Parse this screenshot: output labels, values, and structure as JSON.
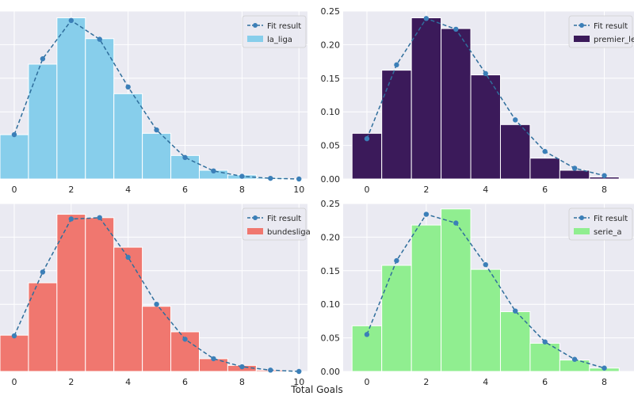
{
  "xlabel": "Total Goals",
  "colors": {
    "panel_bg": "#eaeaf2",
    "grid": "#ffffff",
    "fit_line": "#2f6e9c",
    "fit_marker": "#3b7fb8"
  },
  "chart_data": [
    {
      "type": "bar",
      "league": "la_liga",
      "legend": [
        "Fit result",
        "la_liga"
      ],
      "color": "#87ceeb",
      "xlim": [
        -0.5,
        10.3
      ],
      "ylim": [
        0,
        0.25
      ],
      "xticks": [
        "0",
        "2",
        "4",
        "6",
        "8",
        "10"
      ],
      "yticks": [],
      "bins": [
        0,
        1,
        2,
        3,
        4,
        5,
        6,
        7,
        8,
        9
      ],
      "values": [
        0.066,
        0.171,
        0.24,
        0.209,
        0.127,
        0.068,
        0.035,
        0.013,
        0.006,
        0.002
      ],
      "fit_x": [
        0,
        1,
        2,
        3,
        4,
        5,
        6,
        7,
        8,
        9,
        10
      ],
      "fit_y": [
        0.066,
        0.179,
        0.236,
        0.208,
        0.137,
        0.073,
        0.032,
        0.012,
        0.004,
        0.001,
        0.0
      ]
    },
    {
      "type": "bar",
      "league": "premier",
      "legend": [
        "Fit result",
        "premier_league"
      ],
      "color": "#3b1a5a",
      "xlim": [
        -0.8,
        9.0
      ],
      "ylim": [
        0,
        0.25
      ],
      "xticks": [
        "0",
        "2",
        "4",
        "6",
        "8"
      ],
      "yticks": [
        "0.00",
        "0.05",
        "0.10",
        "0.15",
        "0.20",
        "0.25"
      ],
      "bins": [
        0,
        1,
        2,
        3,
        4,
        5,
        6,
        7,
        8
      ],
      "values": [
        0.068,
        0.162,
        0.24,
        0.224,
        0.155,
        0.081,
        0.031,
        0.013,
        0.003
      ],
      "fit_x": [
        0,
        1,
        2,
        3,
        4,
        5,
        6,
        7,
        8
      ],
      "fit_y": [
        0.06,
        0.17,
        0.239,
        0.223,
        0.157,
        0.088,
        0.041,
        0.016,
        0.005
      ]
    },
    {
      "type": "bar",
      "league": "bundesliga",
      "legend": [
        "Fit result",
        "bundesliga"
      ],
      "color": "#f0776f",
      "xlim": [
        -0.5,
        10.3
      ],
      "ylim": [
        0,
        0.25
      ],
      "xticks": [
        "0",
        "2",
        "4",
        "6",
        "8",
        "10"
      ],
      "yticks": [],
      "bins": [
        0,
        1,
        2,
        3,
        4,
        5,
        6,
        7,
        8,
        9
      ],
      "values": [
        0.054,
        0.132,
        0.234,
        0.229,
        0.185,
        0.097,
        0.059,
        0.019,
        0.009,
        0.002
      ],
      "fit_x": [
        0,
        1,
        2,
        3,
        4,
        5,
        6,
        7,
        8,
        9,
        10
      ],
      "fit_y": [
        0.053,
        0.148,
        0.227,
        0.229,
        0.17,
        0.1,
        0.048,
        0.019,
        0.007,
        0.002,
        0.0
      ]
    },
    {
      "type": "bar",
      "league": "serie_a",
      "legend": [
        "Fit result",
        "serie_a"
      ],
      "color": "#90ee90",
      "xlim": [
        -0.8,
        9.0
      ],
      "ylim": [
        0,
        0.25
      ],
      "xticks": [
        "0",
        "2",
        "4",
        "6",
        "8"
      ],
      "yticks": [
        "0.00",
        "0.05",
        "0.10",
        "0.15",
        "0.20",
        "0.25"
      ],
      "bins": [
        0,
        1,
        2,
        3,
        4,
        5,
        6,
        7,
        8
      ],
      "values": [
        0.068,
        0.158,
        0.218,
        0.242,
        0.152,
        0.089,
        0.042,
        0.017,
        0.005
      ],
      "fit_x": [
        0,
        1,
        2,
        3,
        4,
        5,
        6,
        7,
        8
      ],
      "fit_y": [
        0.055,
        0.165,
        0.234,
        0.221,
        0.159,
        0.09,
        0.044,
        0.018,
        0.005
      ]
    }
  ]
}
